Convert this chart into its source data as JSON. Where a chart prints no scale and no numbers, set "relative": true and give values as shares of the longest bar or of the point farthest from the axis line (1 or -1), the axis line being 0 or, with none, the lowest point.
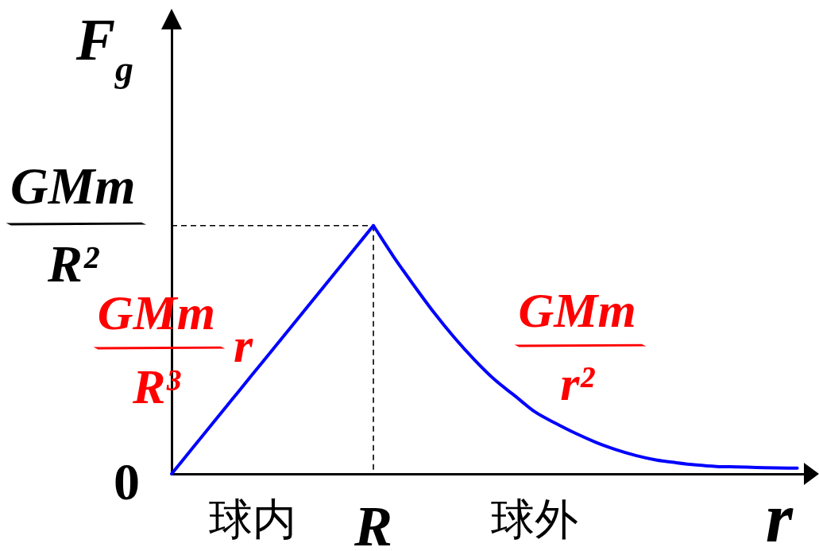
{
  "chart_data": {
    "type": "line",
    "relative": true,
    "xlabel": "r",
    "ylabel": "F$_{g}$",
    "categories": [
      null,
      null,
      null,
      null,
      "球内",
      null,
      null,
      null,
      null,
      null,
      "R",
      null,
      null,
      null,
      null,
      null,
      null,
      null,
      "球外",
      null,
      null,
      null,
      null,
      null,
      null,
      null,
      null,
      null,
      null,
      null,
      null,
      null
    ],
    "series": [
      {
        "name": "GMm/R³ r",
        "color": "#0000ff",
        "values": [
          0,
          0.1,
          0.2,
          0.3,
          0.4,
          0.5,
          0.6,
          0.7,
          0.8,
          0.9,
          1,
          null,
          null,
          null,
          null,
          null,
          null,
          null,
          null,
          null,
          null,
          null,
          null,
          null,
          null,
          null,
          null,
          null,
          null,
          null,
          null,
          null
        ]
      },
      {
        "name": "GMm/r²",
        "color": "#0000ff",
        "values": [
          null,
          null,
          null,
          null,
          null,
          null,
          null,
          null,
          null,
          null,
          1,
          0.875,
          0.76,
          0.65,
          0.55,
          0.46,
          0.38,
          0.315,
          0.25,
          0.205,
          0.164,
          0.128,
          0.098,
          0.074,
          0.056,
          0.045,
          0.036,
          0.03,
          0.028,
          0.026,
          0.024,
          0.023
        ]
      },
      {
        "color": "#000000",
        "line_style": "dashed",
        "values": [
          1,
          1,
          1,
          1,
          1,
          1,
          1,
          1,
          1,
          1,
          1,
          null,
          null,
          null,
          null,
          null,
          null,
          null,
          null,
          null,
          null,
          null,
          null,
          null,
          null,
          null,
          null,
          null,
          null,
          null,
          null,
          null
        ]
      },
      {
        "color": "#000000",
        "line_style": "dashed",
        "x": [
          "R",
          "R"
        ],
        "values": [
          1,
          0
        ]
      }
    ],
    "annotations": [
      "0",
      "GMm/R²"
    ]
  }
}
